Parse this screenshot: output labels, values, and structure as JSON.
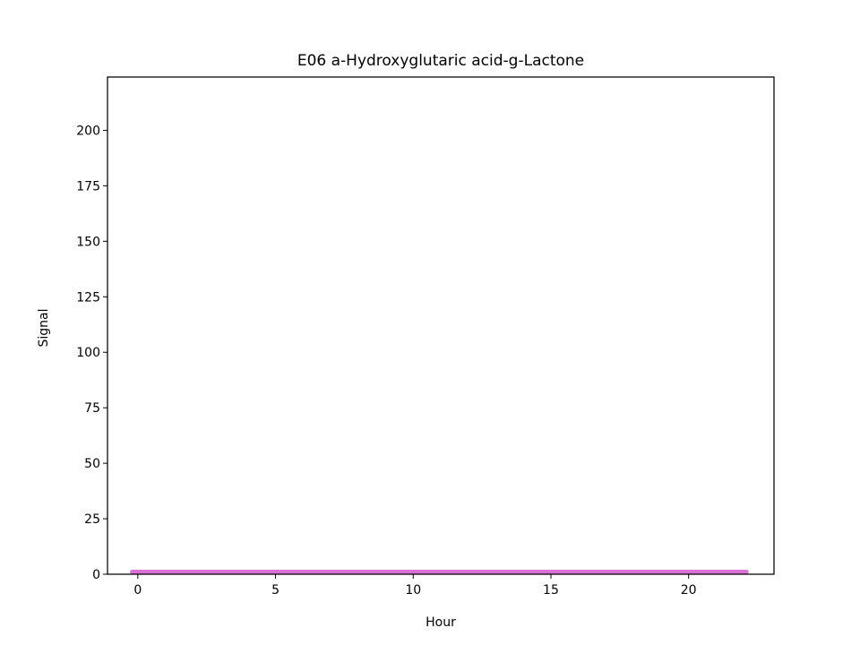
{
  "chart_data": {
    "type": "line",
    "title": "E06 a-Hydroxyglutaric acid-g-Lactone",
    "xlabel": "Hour",
    "ylabel": "Signal",
    "xlim": [
      -1.1,
      23.1
    ],
    "ylim": [
      0,
      224
    ],
    "xticks": [
      0,
      5,
      10,
      15,
      20
    ],
    "yticks": [
      0,
      25,
      50,
      75,
      100,
      125,
      150,
      175,
      200
    ],
    "grid": false,
    "series": [
      {
        "color": "#da70d6",
        "x": [
          -0.2,
          2,
          4,
          6,
          8,
          10,
          12,
          14,
          16,
          18,
          20,
          22.1
        ],
        "y": [
          1,
          1,
          1,
          1,
          1,
          1,
          1,
          1,
          1,
          1,
          1,
          1
        ]
      }
    ]
  }
}
